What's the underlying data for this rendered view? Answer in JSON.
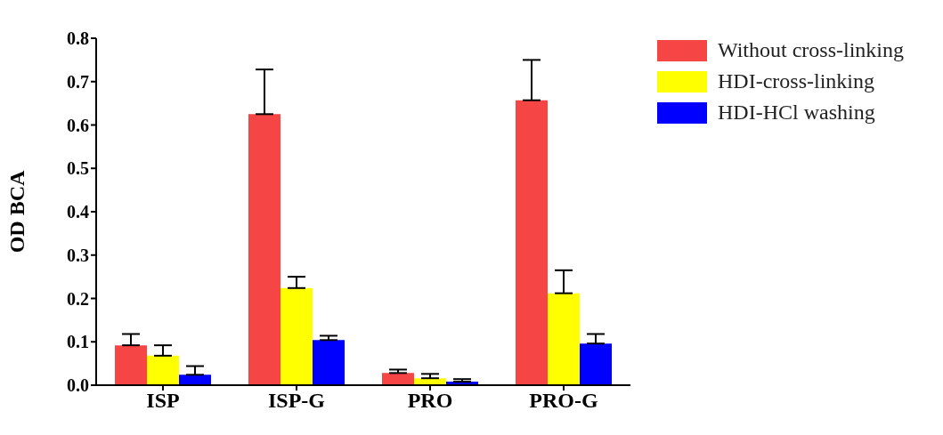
{
  "chart_data": {
    "type": "bar",
    "ylabel": "OD BCA",
    "categories": [
      "ISP",
      "ISP-G",
      "PRO",
      "PRO-G"
    ],
    "series": [
      {
        "name": "Without cross-linking",
        "color": "#f64545",
        "values": [
          0.092,
          0.625,
          0.028,
          0.657
        ],
        "errors": [
          [
            0.092,
            0.118
          ],
          [
            0.625,
            0.728
          ],
          [
            0.028,
            0.036
          ],
          [
            0.657,
            0.75
          ]
        ]
      },
      {
        "name": "HDI-cross-linking",
        "color": "#ffff00",
        "values": [
          0.068,
          0.224,
          0.016,
          0.212
        ],
        "errors": [
          [
            0.068,
            0.092
          ],
          [
            0.224,
            0.25
          ],
          [
            0.016,
            0.026
          ],
          [
            0.212,
            0.265
          ]
        ]
      },
      {
        "name": "HDI-HCl washing",
        "color": "#0000ff",
        "values": [
          0.024,
          0.104,
          0.008,
          0.096
        ],
        "errors": [
          [
            0.024,
            0.044
          ],
          [
            0.104,
            0.114
          ],
          [
            0.008,
            0.014
          ],
          [
            0.096,
            0.118
          ]
        ]
      }
    ],
    "ylim": [
      0,
      0.8
    ],
    "yticks": [
      {
        "value": 0,
        "label": "0.0"
      },
      0.1,
      0.2,
      0.3,
      0.4,
      0.5,
      0.6,
      0.7,
      0.8
    ],
    "grid": false,
    "legend": "top right"
  }
}
